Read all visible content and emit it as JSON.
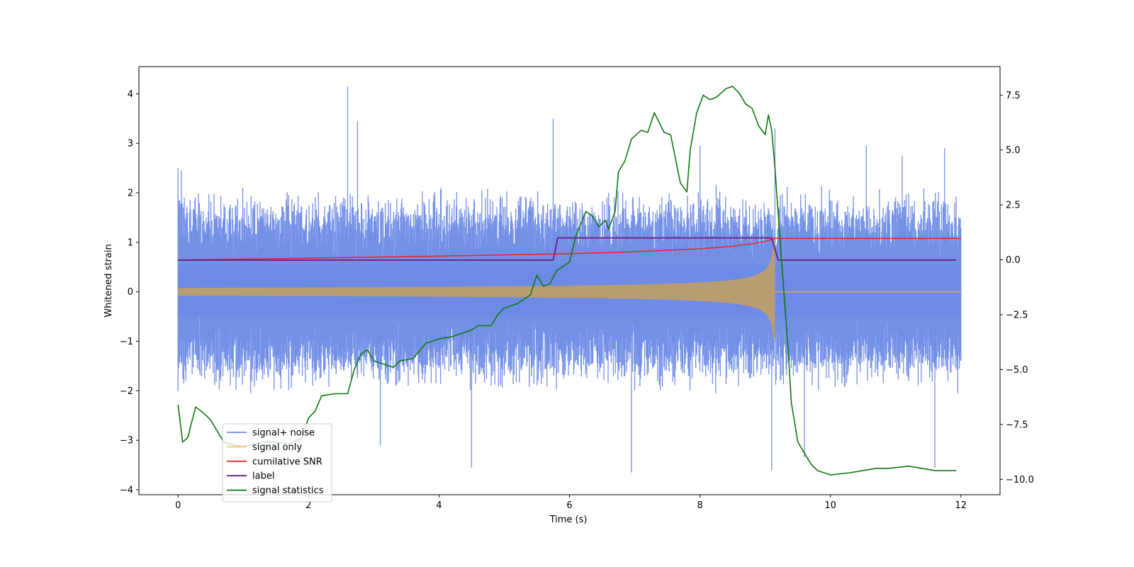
{
  "chart_data": {
    "type": "line",
    "title": "",
    "xlabel": "Time (s)",
    "ylabel": "Whitened strain",
    "xlim": [
      -0.6,
      12.6
    ],
    "ylim": [
      -4.1,
      4.55
    ],
    "y2lim": [
      -10.7,
      8.8
    ],
    "xticks": [
      0,
      2,
      4,
      6,
      8,
      10,
      12
    ],
    "yticks": [
      -4,
      -3,
      -2,
      -1,
      0,
      1,
      2,
      3,
      4
    ],
    "y2ticks": [
      -10.0,
      -7.5,
      -5.0,
      -2.5,
      0.0,
      2.5,
      5.0,
      7.5
    ],
    "xtick_labels": [
      "0",
      "2",
      "4",
      "6",
      "8",
      "10",
      "12"
    ],
    "ytick_labels": [
      "−4",
      "−3",
      "−2",
      "−1",
      "0",
      "1",
      "2",
      "3",
      "4"
    ],
    "y2tick_labels": [
      "−10.0",
      "−7.5",
      "−5.0",
      "−2.5",
      "0.0",
      "2.5",
      "5.0",
      "7.5"
    ],
    "grid": false,
    "legend_position": "lower-left",
    "series": [
      {
        "name": "signal+ noise",
        "color": "#6b8ae6",
        "axis": "left",
        "kind": "noise_band",
        "t_start": 0,
        "t_end": 12,
        "typical_max": 2.0,
        "typical_min": -1.9,
        "spikes": [
          [
            0.0,
            2.5
          ],
          [
            0.05,
            2.45
          ],
          [
            2.6,
            4.15
          ],
          [
            2.75,
            3.45
          ],
          [
            3.1,
            -3.1
          ],
          [
            4.5,
            -3.55
          ],
          [
            5.75,
            3.5
          ],
          [
            6.95,
            -3.65
          ],
          [
            8.0,
            2.95
          ],
          [
            9.1,
            -3.6
          ],
          [
            9.15,
            3.3
          ],
          [
            9.6,
            -3.35
          ],
          [
            11.6,
            -3.55
          ],
          [
            10.55,
            2.95
          ],
          [
            11.1,
            2.75
          ],
          [
            11.75,
            2.9
          ]
        ]
      },
      {
        "name": "signal only",
        "color": "#ffbb66",
        "axis": "left",
        "kind": "chirp",
        "t_start": 0,
        "t_merger": 9.15,
        "t_end": 12,
        "amplitude_start": 0.08,
        "amplitude_peak": 1.55
      },
      {
        "name": "cumilative SNR",
        "color": "#e8262b",
        "axis": "left",
        "points": [
          [
            0,
            0.64
          ],
          [
            2,
            0.68
          ],
          [
            4,
            0.72
          ],
          [
            6,
            0.77
          ],
          [
            7,
            0.81
          ],
          [
            8,
            0.87
          ],
          [
            8.5,
            0.92
          ],
          [
            8.8,
            0.97
          ],
          [
            9.0,
            1.02
          ],
          [
            9.15,
            1.08
          ],
          [
            12,
            1.08
          ]
        ]
      },
      {
        "name": "label",
        "color": "#6a1b7f",
        "axis": "left",
        "points": [
          [
            0,
            0.64
          ],
          [
            5.75,
            0.64
          ],
          [
            5.82,
            1.09
          ],
          [
            9.1,
            1.09
          ],
          [
            9.2,
            0.64
          ],
          [
            11.93,
            0.64
          ]
        ]
      },
      {
        "name": "signal statistics",
        "color": "#117711",
        "axis": "right",
        "points": [
          [
            0,
            -6.6
          ],
          [
            0.07,
            -8.3
          ],
          [
            0.15,
            -8.1
          ],
          [
            0.2,
            -7.5
          ],
          [
            0.27,
            -6.7
          ],
          [
            0.4,
            -7.0
          ],
          [
            0.5,
            -7.3
          ],
          [
            0.6,
            -7.8
          ],
          [
            0.7,
            -8.3
          ],
          [
            0.8,
            -8.4
          ],
          [
            1.0,
            -8.5
          ],
          [
            1.3,
            -8.3
          ],
          [
            1.5,
            -8.3
          ],
          [
            1.7,
            -8.4
          ],
          [
            1.9,
            -8.1
          ],
          [
            2.0,
            -7.2
          ],
          [
            2.1,
            -6.9
          ],
          [
            2.2,
            -6.2
          ],
          [
            2.4,
            -6.1
          ],
          [
            2.6,
            -6.1
          ],
          [
            2.7,
            -5.0
          ],
          [
            2.8,
            -4.3
          ],
          [
            2.9,
            -4.1
          ],
          [
            3.0,
            -4.6
          ],
          [
            3.1,
            -4.7
          ],
          [
            3.3,
            -4.9
          ],
          [
            3.4,
            -4.6
          ],
          [
            3.6,
            -4.5
          ],
          [
            3.8,
            -3.8
          ],
          [
            4.0,
            -3.6
          ],
          [
            4.2,
            -3.5
          ],
          [
            4.4,
            -3.3
          ],
          [
            4.5,
            -3.2
          ],
          [
            4.6,
            -3.0
          ],
          [
            4.8,
            -3.0
          ],
          [
            4.9,
            -2.5
          ],
          [
            5.0,
            -2.2
          ],
          [
            5.2,
            -2.0
          ],
          [
            5.4,
            -1.6
          ],
          [
            5.5,
            -0.7
          ],
          [
            5.6,
            -1.2
          ],
          [
            5.7,
            -1.1
          ],
          [
            5.8,
            -0.5
          ],
          [
            6.0,
            -0.1
          ],
          [
            6.1,
            1.1
          ],
          [
            6.25,
            2.2
          ],
          [
            6.35,
            2.0
          ],
          [
            6.45,
            1.5
          ],
          [
            6.55,
            1.8
          ],
          [
            6.6,
            1.4
          ],
          [
            6.7,
            2.2
          ],
          [
            6.75,
            4.0
          ],
          [
            6.85,
            4.5
          ],
          [
            6.95,
            5.5
          ],
          [
            7.1,
            5.9
          ],
          [
            7.2,
            5.8
          ],
          [
            7.3,
            6.7
          ],
          [
            7.45,
            5.8
          ],
          [
            7.55,
            5.7
          ],
          [
            7.7,
            3.5
          ],
          [
            7.8,
            3.1
          ],
          [
            7.85,
            5.0
          ],
          [
            7.95,
            6.7
          ],
          [
            8.05,
            7.5
          ],
          [
            8.15,
            7.3
          ],
          [
            8.25,
            7.4
          ],
          [
            8.4,
            7.8
          ],
          [
            8.5,
            7.9
          ],
          [
            8.6,
            7.6
          ],
          [
            8.7,
            7.1
          ],
          [
            8.8,
            6.9
          ],
          [
            8.9,
            6.1
          ],
          [
            9.0,
            5.7
          ],
          [
            9.05,
            6.6
          ],
          [
            9.1,
            5.9
          ],
          [
            9.15,
            4.2
          ],
          [
            9.25,
            0.0
          ],
          [
            9.35,
            -4.0
          ],
          [
            9.4,
            -6.5
          ],
          [
            9.5,
            -8.3
          ],
          [
            9.7,
            -9.3
          ],
          [
            9.8,
            -9.6
          ],
          [
            10.0,
            -9.8
          ],
          [
            10.3,
            -9.7
          ],
          [
            10.5,
            -9.6
          ],
          [
            10.7,
            -9.5
          ],
          [
            10.9,
            -9.5
          ],
          [
            11.2,
            -9.4
          ],
          [
            11.4,
            -9.5
          ],
          [
            11.6,
            -9.6
          ],
          [
            11.93,
            -9.6
          ]
        ]
      }
    ]
  }
}
